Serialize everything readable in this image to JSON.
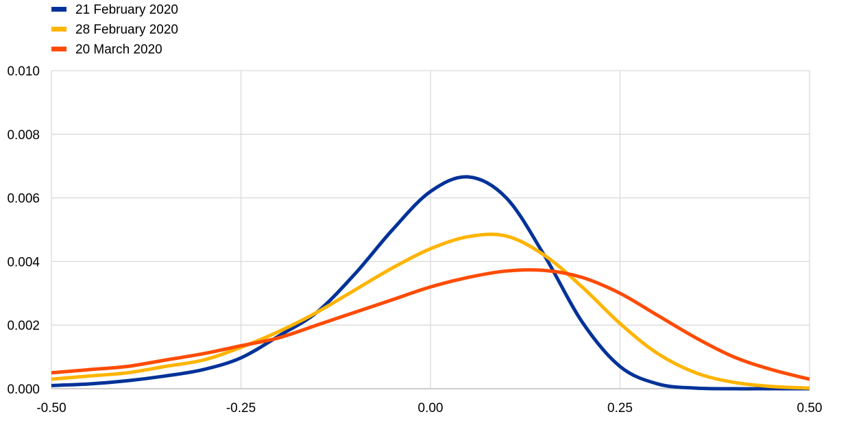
{
  "chart_data": {
    "type": "line",
    "title": "",
    "xlabel": "",
    "ylabel": "",
    "xlim": [
      -0.5,
      0.5
    ],
    "ylim": [
      0,
      0.01
    ],
    "grid": true,
    "legend_position": "top-left",
    "x_ticks": [
      "-0.50",
      "-0.25",
      "0.00",
      "0.25",
      "0.50"
    ],
    "x_tick_values": [
      -0.5,
      -0.25,
      0,
      0.25,
      0.5
    ],
    "y_ticks": [
      "0.000",
      "0.002",
      "0.004",
      "0.006",
      "0.008",
      "0.010"
    ],
    "y_tick_values": [
      0,
      0.002,
      0.004,
      0.006,
      0.008,
      0.01
    ],
    "x": [
      -0.5,
      -0.45,
      -0.4,
      -0.35,
      -0.3,
      -0.25,
      -0.2,
      -0.15,
      -0.1,
      -0.05,
      0,
      0.05,
      0.1,
      0.15,
      0.2,
      0.25,
      0.3,
      0.35,
      0.4,
      0.45,
      0.5
    ],
    "series": [
      {
        "name": "21 February 2020",
        "color": "#003299",
        "values": [
          0.0001,
          0.00015,
          0.00025,
          0.0004,
          0.0006,
          0.00097,
          0.00166,
          0.0024,
          0.0036,
          0.005,
          0.0062,
          0.00666,
          0.006,
          0.0042,
          0.0021,
          0.0007,
          0.00015,
          2e-05,
          0,
          0,
          0
        ]
      },
      {
        "name": "28 February 2020",
        "color": "#FFB400",
        "values": [
          0.0003,
          0.0004,
          0.0005,
          0.0007,
          0.0009,
          0.0013,
          0.0018,
          0.0024,
          0.0031,
          0.0038,
          0.0044,
          0.00478,
          0.0048,
          0.0042,
          0.0032,
          0.00205,
          0.0011,
          0.0005,
          0.0002,
          7e-05,
          2e-05
        ]
      },
      {
        "name": "20 March 2020",
        "color": "#FF4B00",
        "values": [
          0.0005,
          0.0006,
          0.0007,
          0.0009,
          0.0011,
          0.00135,
          0.0016,
          0.002,
          0.0024,
          0.0028,
          0.0032,
          0.0035,
          0.0037,
          0.00372,
          0.0035,
          0.003,
          0.0023,
          0.0016,
          0.001,
          0.0006,
          0.0003
        ]
      }
    ]
  }
}
